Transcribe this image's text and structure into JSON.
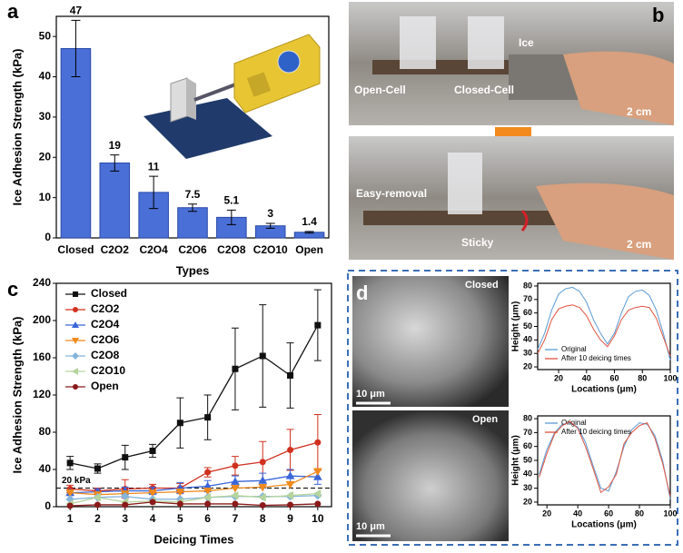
{
  "chart_data": [
    {
      "type": "bar",
      "panel_label": "a",
      "xlabel": "Types",
      "ylabel": "Ice Adhesion Strength (kPa)",
      "categories": [
        "Closed",
        "C2O2",
        "C2O4",
        "C2O6",
        "C2O8",
        "C2O10",
        "Open"
      ],
      "values": [
        47,
        18.6,
        11.3,
        7.5,
        5.1,
        3,
        1.4
      ],
      "value_labels": [
        "47",
        "19",
        "11",
        "7.5",
        "5.1",
        "3",
        "1.4"
      ],
      "errors": [
        7,
        2,
        4,
        0.9,
        1.8,
        0.6,
        0.2
      ],
      "color": "#4a6fd6",
      "ylim": [
        0,
        55
      ],
      "yticks": [
        0,
        10,
        20,
        30,
        40,
        50
      ]
    },
    {
      "type": "line",
      "panel_label": "c",
      "xlabel": "Deicing Times",
      "ylabel": "Ice Adhesion Strength (kPa)",
      "x": [
        1,
        2,
        3,
        4,
        5,
        6,
        7,
        8,
        9,
        10
      ],
      "xlim": [
        0.5,
        10.5
      ],
      "xticks": [
        1,
        2,
        3,
        4,
        5,
        6,
        7,
        8,
        9,
        10
      ],
      "ylim": [
        0,
        240
      ],
      "yticks": [
        0,
        40,
        80,
        120,
        160,
        200,
        240
      ],
      "legend": "upper left",
      "ref_line": 20,
      "ref_label": "20 kPa",
      "series": [
        {
          "name": "Closed",
          "color": "#111111",
          "marker": "square",
          "values": [
            47,
            41,
            53,
            60,
            90,
            96,
            148,
            162,
            141,
            195
          ],
          "errors": [
            7,
            5,
            13,
            7,
            27,
            24,
            44,
            55,
            35,
            38
          ]
        },
        {
          "name": "C2O2",
          "color": "#d1301f",
          "marker": "circle",
          "values": [
            19,
            17,
            19,
            20,
            20,
            37,
            44,
            48,
            61,
            69
          ],
          "errors": [
            4,
            3,
            10,
            4,
            5,
            5,
            10,
            22,
            22,
            30
          ]
        },
        {
          "name": "C2O4",
          "color": "#3a66d8",
          "marker": "triangle-up",
          "values": [
            15,
            16,
            17,
            17,
            20,
            22,
            27,
            28,
            33,
            32
          ],
          "errors": [
            3,
            3,
            4,
            4,
            6,
            6,
            6,
            8,
            7,
            8
          ]
        },
        {
          "name": "C2O6",
          "color": "#f08a1c",
          "marker": "triangle-down",
          "values": [
            15,
            13,
            14,
            15,
            16,
            17,
            20,
            21,
            24,
            38
          ]
        },
        {
          "name": "C2O8",
          "color": "#86b4dc",
          "marker": "diamond",
          "values": [
            8,
            10,
            11,
            8,
            8,
            10,
            11,
            11,
            11,
            12
          ]
        },
        {
          "name": "C2O10",
          "color": "#b5d49c",
          "marker": "triangle-left",
          "values": [
            3,
            10,
            5,
            6,
            5,
            10,
            12,
            10,
            12,
            14
          ]
        },
        {
          "name": "Open",
          "color": "#8b1a1a",
          "marker": "circle",
          "values": [
            1,
            2,
            2,
            5,
            3,
            3,
            3,
            1.5,
            2,
            3
          ]
        }
      ]
    },
    {
      "type": "line",
      "xlabel": "Locations (μm)",
      "ylabel": "Height (μm)",
      "x": [
        5,
        10,
        15,
        20,
        25,
        30,
        35,
        40,
        45,
        50,
        55,
        60,
        65,
        70,
        75,
        80,
        85,
        90,
        95,
        100
      ],
      "xlim": [
        5,
        100
      ],
      "xticks": [
        20,
        40,
        60,
        80,
        100
      ],
      "ylim": [
        18,
        82
      ],
      "yticks": [
        20,
        30,
        40,
        50,
        60,
        70,
        80
      ],
      "legend": "lower left",
      "series": [
        {
          "name": "Original",
          "color": "#5b9bd5",
          "values": [
            33,
            45,
            62,
            74,
            78,
            79,
            76,
            68,
            55,
            45,
            37,
            45,
            60,
            72,
            76,
            77,
            73,
            62,
            45,
            25
          ]
        },
        {
          "name": "After 10 deicing times",
          "color": "#e0533f",
          "values": [
            30,
            40,
            55,
            63,
            65,
            66,
            64,
            58,
            48,
            40,
            35,
            43,
            55,
            62,
            64,
            65,
            64,
            56,
            42,
            28
          ]
        }
      ]
    },
    {
      "type": "line",
      "xlabel": "Locations (μm)",
      "ylabel": "Height (μm)",
      "x": [
        15,
        20,
        25,
        30,
        35,
        40,
        45,
        50,
        55,
        60,
        65,
        70,
        75,
        80,
        85,
        90,
        95,
        100
      ],
      "xlim": [
        14,
        100
      ],
      "xticks": [
        20,
        40,
        60,
        80,
        100
      ],
      "ylim": [
        18,
        82
      ],
      "yticks": [
        20,
        30,
        40,
        50,
        60,
        70,
        80
      ],
      "legend": "upper left",
      "series": [
        {
          "name": "Original",
          "color": "#5b9bd5",
          "values": [
            40,
            58,
            70,
            76,
            77,
            74,
            63,
            46,
            30,
            28,
            42,
            60,
            72,
            77,
            76,
            68,
            50,
            22
          ]
        },
        {
          "name": "After 10 deicing times",
          "color": "#e0533f",
          "values": [
            38,
            55,
            69,
            75,
            78,
            73,
            60,
            44,
            27,
            31,
            40,
            62,
            70,
            75,
            77,
            66,
            48,
            24
          ]
        }
      ]
    }
  ],
  "photos": {
    "panel_label": "b",
    "ice": "Ice",
    "open_cell": "Open-Cell",
    "closed_cell": "Closed-Cell",
    "scale_top": "2 cm",
    "easy_removal": "Easy-removal",
    "sticky": "Sticky",
    "scale_bottom": "2 cm"
  },
  "sem": {
    "panel_label": "d",
    "closed": "Closed",
    "scale_closed": "10 μm",
    "open": "Open",
    "scale_open": "10 μm"
  }
}
